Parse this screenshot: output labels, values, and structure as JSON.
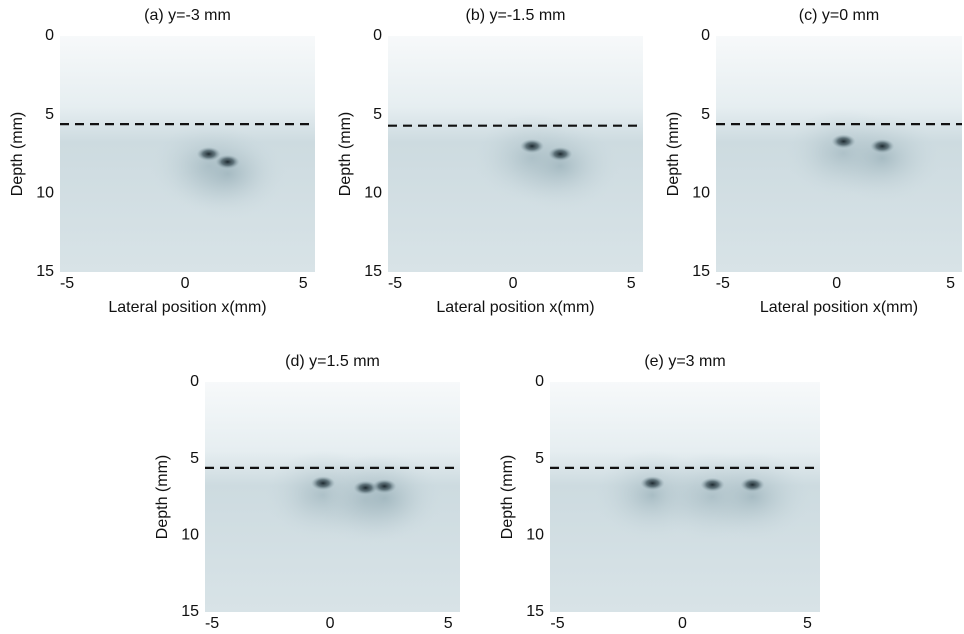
{
  "chart_data": [
    {
      "type": "heatmap",
      "title": "(a) y=-3 mm",
      "xlabel": "Lateral position x(mm)",
      "ylabel": "Depth (mm)",
      "xlim": [
        -5.3,
        5.5
      ],
      "ylim": [
        0,
        15
      ],
      "xticks": [
        -5,
        0,
        5
      ],
      "yticks": [
        0,
        5,
        10,
        15
      ],
      "hline": 5.6,
      "spots": {
        "x": [
          1.0,
          1.8
        ],
        "y": [
          7.5,
          8.0
        ]
      }
    },
    {
      "type": "heatmap",
      "title": "(b) y=-1.5 mm",
      "xlabel": "Lateral position x(mm)",
      "ylabel": "Depth (mm)",
      "xlim": [
        -5.3,
        5.5
      ],
      "ylim": [
        0,
        15
      ],
      "xticks": [
        -5,
        0,
        5
      ],
      "yticks": [
        0,
        5,
        10,
        15
      ],
      "hline": 5.7,
      "spots": {
        "x": [
          0.8,
          2.0
        ],
        "y": [
          7.0,
          7.5
        ]
      }
    },
    {
      "type": "heatmap",
      "title": "(c) y=0 mm",
      "xlabel": "Lateral position x(mm)",
      "ylabel": "Depth (mm)",
      "xlim": [
        -5.3,
        5.5
      ],
      "ylim": [
        0,
        15
      ],
      "xticks": [
        -5,
        0,
        5
      ],
      "yticks": [
        0,
        5,
        10,
        15
      ],
      "hline": 5.6,
      "spots": {
        "x": [
          0.3,
          2.0
        ],
        "y": [
          6.7,
          7.0
        ]
      }
    },
    {
      "type": "heatmap",
      "title": "(d) y=1.5 mm",
      "ylabel": "Depth (mm)",
      "xlim": [
        -5.3,
        5.5
      ],
      "ylim": [
        0,
        15
      ],
      "xticks": [
        -5,
        0,
        5
      ],
      "yticks": [
        0,
        5,
        10,
        15
      ],
      "hline": 5.6,
      "spots": {
        "x": [
          -0.3,
          1.5,
          2.3
        ],
        "y": [
          6.6,
          6.9,
          6.8
        ]
      }
    },
    {
      "type": "heatmap",
      "title": "(e) y=3 mm",
      "ylabel": "Depth (mm)",
      "xlim": [
        -5.3,
        5.5
      ],
      "ylim": [
        0,
        15
      ],
      "xticks": [
        -5,
        0,
        5
      ],
      "yticks": [
        0,
        5,
        10,
        15
      ],
      "hline": 5.6,
      "spots": {
        "x": [
          -1.2,
          1.2,
          2.8
        ],
        "y": [
          6.6,
          6.7,
          6.7
        ]
      }
    }
  ]
}
